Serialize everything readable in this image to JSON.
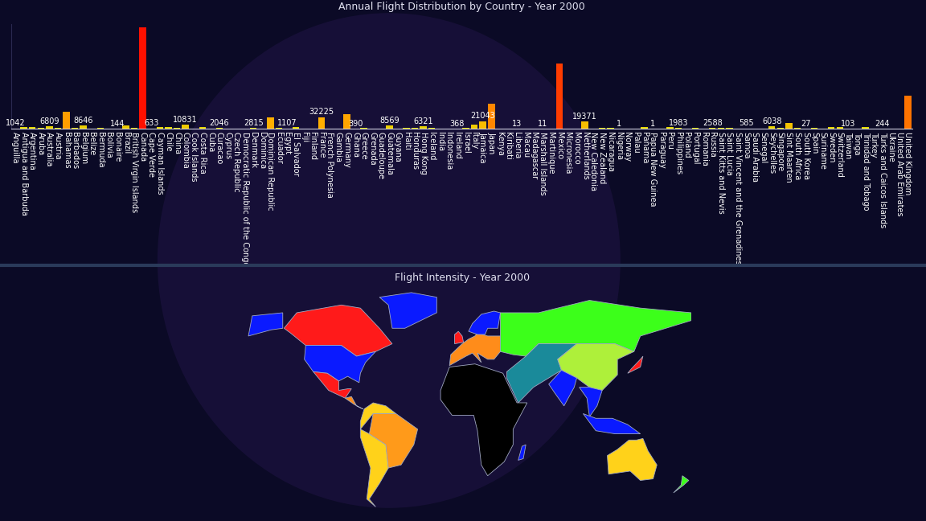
{
  "chart_data": [
    {
      "type": "bar",
      "title": "Annual Flight Distribution by Country - Year 2000",
      "categories": [
        "Anguilla",
        "Antigua and Barbuda",
        "Argentina",
        "Aruba",
        "Australia",
        "Austria",
        "Bahamas",
        "Barbados",
        "Belgium",
        "Belize",
        "Bermuda",
        "Bolivia",
        "Bonaire",
        "Brazil",
        "British Virgin Islands",
        "Canada",
        "Cape Verde",
        "Cayman Islands",
        "Chile",
        "China",
        "Colombia",
        "Cook Islands",
        "Costa Rica",
        "Cuba",
        "Curacao",
        "Cyprus",
        "Czech Republic",
        "Democratic Republic of the Congo",
        "Denmark",
        "Dominica",
        "Dominican Republic",
        "Ecuador",
        "Egypt",
        "El Salvador",
        "Fiji",
        "Finland",
        "France",
        "French Polynesia",
        "Gambia",
        "Germany",
        "Ghana",
        "Greece",
        "Grenada",
        "Guadeloupe",
        "Guatemala",
        "Guyana",
        "Haiti",
        "Honduras",
        "Hong Kong",
        "Iceland",
        "India",
        "Indonesia",
        "Ireland",
        "Israel",
        "Italy",
        "Jamaica",
        "Japan",
        "Kenya",
        "Kiribati",
        "Liberia",
        "Macau",
        "Madagascar",
        "Marshall Islands",
        "Martinique",
        "Mexico",
        "Micronesia",
        "Morocco",
        "Netherlands",
        "New Caledonia",
        "New Zealand",
        "Nicaragua",
        "Nigeria",
        "Norway",
        "Palau",
        "Panama",
        "Papua New Guinea",
        "Paraguay",
        "Peru",
        "Philippines",
        "Poland",
        "Portugal",
        "Romania",
        "Russia",
        "Saint Kitts and Nevis",
        "Saint Lucia",
        "Saint Vincent and the Grenadines",
        "Samoa",
        "Saudi Arabia",
        "Senegal",
        "Seychelles",
        "Singapore",
        "Sint Maarten",
        "South Africa",
        "South Korea",
        "Spain",
        "Suriname",
        "Sweden",
        "Switzerland",
        "Taiwan",
        "Tonga",
        "Trinidad and Tobago",
        "Turkey",
        "Turks and Caicos Islands",
        "Ukraine",
        "United Arab Emirates",
        "United Kingdom"
      ],
      "values": [
        1042,
        3500,
        4200,
        2900,
        6809,
        1900,
        46000,
        3100,
        8646,
        900,
        3300,
        60,
        144,
        9500,
        2100,
        283000,
        633,
        4800,
        3700,
        1600,
        10831,
        300,
        5200,
        1200,
        2046,
        150,
        700,
        20,
        2815,
        400,
        32000,
        2600,
        1107,
        4300,
        700,
        350,
        32225,
        900,
        200,
        40500,
        390,
        1500,
        600,
        800,
        8569,
        500,
        1800,
        2400,
        6321,
        1300,
        1000,
        250,
        368,
        2200,
        11000,
        21043,
        69000,
        80,
        30,
        13,
        150,
        40,
        11,
        700,
        182000,
        400,
        500,
        19371,
        200,
        1800,
        1400,
        1,
        300,
        350,
        4500,
        1,
        100,
        3900,
        1983,
        600,
        1400,
        200,
        2588,
        1500,
        2300,
        700,
        585,
        450,
        250,
        6038,
        1700,
        16500,
        3200,
        27,
        2100,
        300,
        4500,
        5600,
        103,
        50,
        3600,
        500,
        244,
        200,
        900,
        92000
      ],
      "value_labels": [
        "1042",
        null,
        null,
        null,
        "6809",
        null,
        null,
        null,
        "8646",
        null,
        null,
        null,
        "144",
        null,
        null,
        null,
        "633",
        null,
        null,
        null,
        "10831",
        null,
        null,
        null,
        "2046",
        null,
        null,
        null,
        "2815",
        null,
        null,
        null,
        "1107",
        null,
        null,
        null,
        "32225",
        null,
        null,
        null,
        "390",
        null,
        null,
        null,
        "8569",
        null,
        null,
        null,
        "6321",
        null,
        null,
        null,
        "368",
        null,
        null,
        "21043",
        null,
        null,
        null,
        "13",
        null,
        null,
        "11",
        null,
        null,
        null,
        null,
        "19371",
        null,
        null,
        null,
        "1",
        null,
        null,
        null,
        "1",
        null,
        null,
        "1983",
        null,
        null,
        null,
        "2588",
        null,
        null,
        null,
        "585",
        null,
        null,
        "6038",
        null,
        null,
        null,
        "27",
        null,
        null,
        null,
        null,
        "103",
        null,
        null,
        null,
        "244",
        null,
        null,
        null
      ],
      "data_labels": true,
      "ylim": [
        0,
        290000
      ],
      "tick_labels": "x",
      "grid": false
    },
    {
      "type": "map",
      "title": "Flight Intensity - Year 2000"
    }
  ]
}
